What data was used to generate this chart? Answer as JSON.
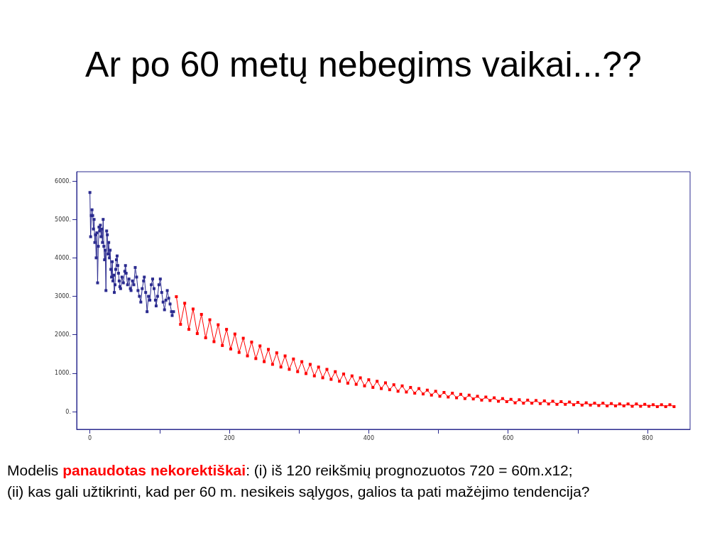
{
  "chart_data": {
    "type": "line",
    "title": "Ar po 60 metų nebegims vaikai...??",
    "annotations": [
      "Modelis ",
      "panaudotas nekorektiškai",
      ": (i) iš 120 reikšmių prognozuotos 720 = 60m.x12;",
      "(ii) kas gali užtikrinti, kad per 60 m. nesikeis sąlygos, galios ta pati mažėjimo tendencija?"
    ],
    "xlim": [
      -19,
      861
    ],
    "xticks": [
      {
        "value": 0,
        "label": "0"
      },
      {
        "value": 100,
        "label": null
      },
      {
        "value": 200,
        "label": "200"
      },
      {
        "value": 300,
        "label": null
      },
      {
        "value": 400,
        "label": "400"
      },
      {
        "value": 500,
        "label": null
      },
      {
        "value": 600,
        "label": "600"
      },
      {
        "value": 700,
        "label": null
      },
      {
        "value": 800,
        "label": "800"
      }
    ],
    "ylim": [
      -460,
      6240
    ],
    "yticks": [
      {
        "value": 0,
        "label": "0."
      },
      {
        "value": 1000,
        "label": "1000."
      },
      {
        "value": 2000,
        "label": "2000."
      },
      {
        "value": 3000,
        "label": "3000."
      },
      {
        "value": 4000,
        "label": "4000."
      },
      {
        "value": 5000,
        "label": "5000."
      },
      {
        "value": 6000,
        "label": "6000."
      }
    ],
    "grid": false,
    "marker": "square",
    "line_style": "solid",
    "series": [
      {
        "color": "#2b2b8f",
        "x": [
          0,
          1,
          2,
          3,
          4,
          5,
          6,
          7,
          8,
          9,
          10,
          11,
          12,
          13,
          14,
          15,
          16,
          17,
          18,
          19,
          20,
          21,
          22,
          23,
          24,
          25,
          26,
          27,
          28,
          29,
          30,
          31,
          32,
          33,
          34,
          35,
          36,
          37,
          38,
          39,
          40,
          41,
          42,
          43,
          44,
          46,
          48,
          50,
          51,
          52,
          54,
          56,
          58,
          59,
          61,
          63,
          65,
          67,
          69,
          71,
          73,
          75,
          77,
          78,
          80,
          82,
          84,
          86,
          88,
          90,
          92,
          94,
          95,
          97,
          99,
          101,
          103,
          105,
          107,
          109,
          111,
          113,
          115,
          117,
          118,
          120
        ],
        "values": [
          5700,
          4550,
          5100,
          5250,
          5100,
          4750,
          5000,
          4400,
          4600,
          4000,
          4650,
          3350,
          4300,
          4800,
          4700,
          4850,
          4550,
          4750,
          4400,
          5000,
          4300,
          3950,
          4200,
          3150,
          4700,
          4600,
          4100,
          4400,
          4000,
          4200,
          3700,
          3500,
          3900,
          3400,
          3550,
          3100,
          3300,
          3700,
          3950,
          4050,
          3800,
          3600,
          3400,
          3250,
          3200,
          3500,
          3350,
          3650,
          3800,
          3600,
          3300,
          3450,
          3200,
          3150,
          3400,
          3300,
          3750,
          3500,
          3150,
          3000,
          2850,
          3200,
          3400,
          3500,
          3100,
          2600,
          3000,
          2900,
          3300,
          3450,
          3200,
          2900,
          2750,
          3000,
          3300,
          3450,
          3100,
          2850,
          2650,
          2900,
          3150,
          2950,
          2800,
          2600,
          2500,
          2600
        ]
      },
      {
        "color": "#ff0000",
        "x": [
          124,
          130,
          136,
          142,
          148,
          154,
          160,
          166,
          172,
          178,
          184,
          190,
          196,
          202,
          208,
          214,
          220,
          226,
          232,
          238,
          244,
          250,
          256,
          262,
          268,
          274,
          280,
          286,
          292,
          298,
          304,
          310,
          316,
          322,
          328,
          334,
          340,
          346,
          352,
          358,
          364,
          370,
          376,
          382,
          388,
          394,
          400,
          406,
          412,
          418,
          424,
          430,
          436,
          442,
          448,
          454,
          460,
          466,
          472,
          478,
          484,
          490,
          496,
          502,
          508,
          514,
          520,
          526,
          532,
          538,
          544,
          550,
          556,
          562,
          568,
          574,
          580,
          586,
          592,
          598,
          604,
          610,
          616,
          622,
          628,
          634,
          640,
          646,
          652,
          658,
          664,
          670,
          676,
          682,
          688,
          694,
          700,
          706,
          712,
          718,
          724,
          730,
          736,
          742,
          748,
          754,
          760,
          766,
          772,
          778,
          784,
          790,
          796,
          802,
          808,
          814,
          820,
          826,
          832,
          838
        ],
        "values": [
          2990,
          2270,
          2820,
          2140,
          2670,
          2030,
          2530,
          1920,
          2390,
          1820,
          2260,
          1720,
          2140,
          1630,
          2020,
          1540,
          1910,
          1450,
          1810,
          1380,
          1710,
          1300,
          1620,
          1230,
          1530,
          1160,
          1450,
          1100,
          1370,
          1040,
          1300,
          990,
          1230,
          930,
          1160,
          880,
          1100,
          840,
          1040,
          790,
          980,
          740,
          930,
          710,
          880,
          670,
          830,
          630,
          790,
          600,
          750,
          570,
          700,
          530,
          670,
          510,
          630,
          480,
          600,
          460,
          560,
          430,
          530,
          400,
          500,
          380,
          480,
          360,
          450,
          340,
          430,
          330,
          400,
          300,
          380,
          290,
          360,
          270,
          340,
          260,
          320,
          230,
          310,
          220,
          300,
          220,
          290,
          210,
          280,
          200,
          270,
          190,
          260,
          190,
          250,
          180,
          240,
          170,
          230,
          170,
          220,
          160,
          220,
          150,
          210,
          150,
          200,
          150,
          200,
          140,
          200,
          140,
          190,
          140,
          180,
          130,
          180,
          130,
          180,
          130
        ]
      }
    ]
  }
}
